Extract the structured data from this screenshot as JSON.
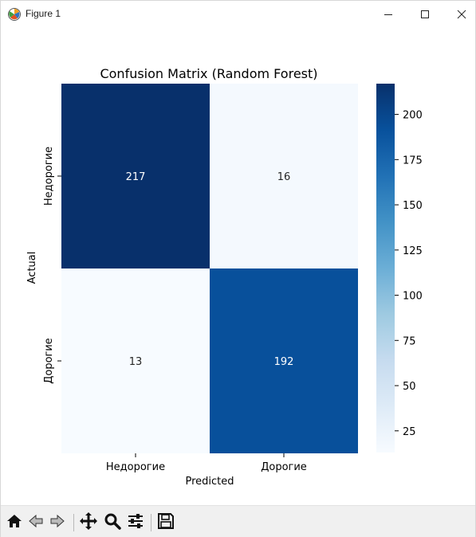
{
  "window": {
    "title": "Figure 1",
    "app_icon": "matplotlib-icon",
    "controls": [
      "minimize-icon",
      "maximize-icon",
      "close-icon"
    ]
  },
  "toolbar": {
    "buttons": [
      "home-icon",
      "back-icon",
      "forward-icon",
      "pan-icon",
      "zoom-icon",
      "configure-subplots-icon",
      "save-icon"
    ]
  },
  "colors": {
    "cmap_low": "#f7fbff",
    "cmap_high": "#08306b",
    "text_dark": "#262626",
    "text_light": "#ffffff"
  },
  "chart_data": {
    "type": "heatmap",
    "title": "Confusion Matrix (Random Forest)",
    "xlabel": "Predicted",
    "ylabel": "Actual",
    "x_categories": [
      "Недорогие",
      "Дорогие"
    ],
    "y_categories": [
      "Недорогие",
      "Дорогие"
    ],
    "values": [
      [
        217,
        16
      ],
      [
        13,
        192
      ]
    ],
    "colormap": "Blues",
    "colorbar": {
      "range": [
        13,
        217
      ],
      "ticks": [
        25,
        50,
        75,
        100,
        125,
        150,
        175,
        200
      ],
      "position": "right"
    },
    "grid": false
  }
}
